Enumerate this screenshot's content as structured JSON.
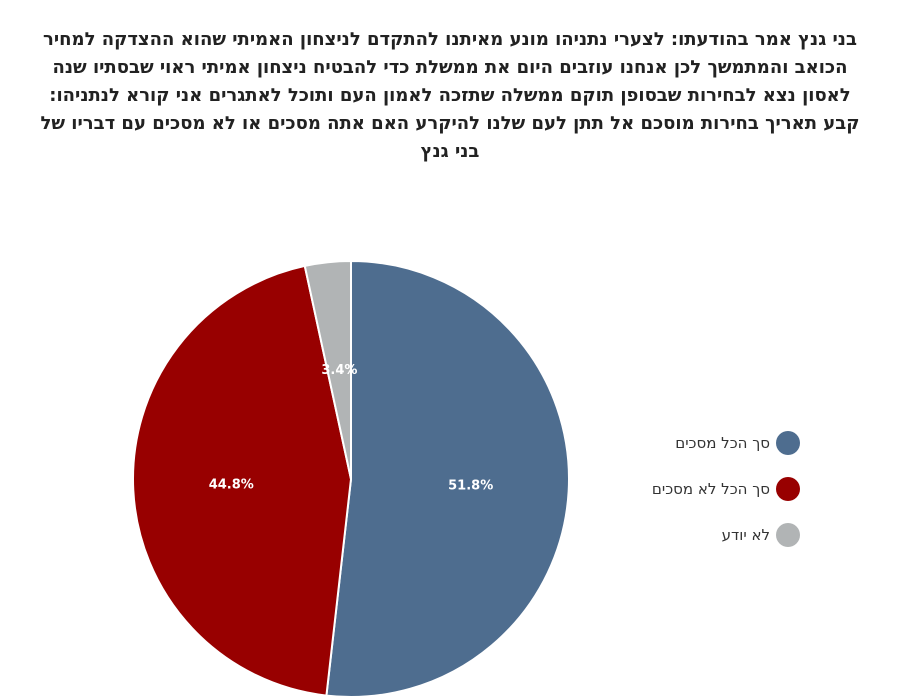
{
  "chart_data": {
    "type": "pie",
    "title": "בני גנץ אמר בהודעתו: לצערי נתניהו מונע מאיתנו להתקדם לניצחון האמיתי שהוא ההצדקה למחיר הכואב והמתמשך לכן אנחנו עוזבים היום את ממשלת כדי להבטיח ניצחון אמיתי ראוי שבסתיו שנה לאסון נצא לבחירות שבסופן תוקם ממשלה שתזכה לאמון העם ותוכל לאתגרים אני קורא לנתניהו: קבע תאריך בחירות מוסכם אל תתן לעם שלנו להיקרע האם אתה מסכים או לא מסכים עם דבריו של בני גנץ",
    "slices": [
      {
        "label": "סך הכל מסכים",
        "value": 51.8,
        "display": "51.8%",
        "color": "#4e6d8f"
      },
      {
        "label": "סך הכל לא מסכים",
        "value": 44.8,
        "display": "44.8%",
        "color": "#980000"
      },
      {
        "label": "לא יודע",
        "value": 3.4,
        "display": "3.4%",
        "color": "#b1b4b5"
      }
    ],
    "legend_position": "right",
    "start_angle": "top, clockwise"
  }
}
